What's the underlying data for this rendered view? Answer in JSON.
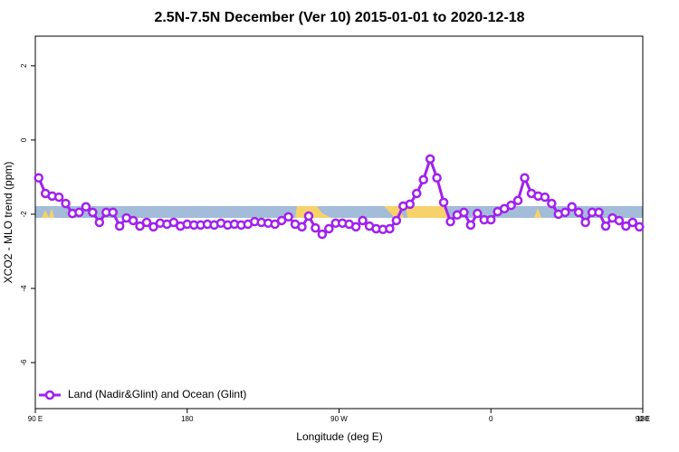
{
  "chart_data": {
    "type": "line",
    "title": "2.5N-7.5N December (Ver 10)   2015-01-01 to 2020-12-18",
    "xlabel": "Longitude (deg E)",
    "ylabel": "XCO2 - MLO trend (ppm)",
    "xlim": [
      90,
      450
    ],
    "ylim": [
      -7.24,
      2.8
    ],
    "xticks": [
      {
        "value": 90,
        "label": "90 E"
      },
      180,
      {
        "value": 270,
        "label": "90 W"
      },
      {
        "value": 360,
        "label": "0"
      },
      {
        "value": 450,
        "label": "90 E"
      },
      {
        "value": 540,
        "label": "180"
      }
    ],
    "yticks": [
      2,
      0,
      -2,
      -4,
      -6
    ],
    "legend": "bottom-left",
    "x": [
      92,
      96,
      100,
      104,
      108,
      112,
      116,
      120,
      124,
      128,
      132,
      136,
      140,
      144,
      148,
      152,
      156,
      160,
      164,
      168,
      172,
      176,
      180,
      184,
      188,
      192,
      196,
      200,
      204,
      208,
      212,
      216,
      220,
      224,
      228,
      232,
      236,
      240,
      244,
      248,
      252,
      256,
      260,
      264,
      268,
      272,
      276,
      280,
      284,
      288,
      292,
      296,
      300,
      304,
      308,
      312,
      316,
      320,
      324,
      328,
      332,
      336,
      340,
      344,
      348,
      352,
      356,
      360,
      364,
      368,
      372,
      376,
      380,
      384,
      388,
      392,
      396,
      400,
      404,
      408,
      412,
      416,
      420,
      424,
      428,
      432,
      436,
      440,
      444,
      448
    ],
    "series": [
      {
        "name": "Land (Nadir&Glint) and Ocean (Glint)",
        "color": "#a020f0",
        "values": [
          -1.02,
          -1.44,
          -1.51,
          -1.54,
          -1.71,
          -1.98,
          -1.95,
          -1.8,
          -1.95,
          -2.22,
          -1.95,
          -1.95,
          -2.32,
          -2.1,
          -2.17,
          -2.32,
          -2.22,
          -2.34,
          -2.24,
          -2.27,
          -2.22,
          -2.32,
          -2.27,
          -2.29,
          -2.29,
          -2.27,
          -2.29,
          -2.24,
          -2.29,
          -2.27,
          -2.29,
          -2.27,
          -2.2,
          -2.22,
          -2.24,
          -2.27,
          -2.17,
          -2.07,
          -2.27,
          -2.34,
          -2.05,
          -2.37,
          -2.54,
          -2.39,
          -2.24,
          -2.24,
          -2.27,
          -2.34,
          -2.17,
          -2.32,
          -2.39,
          -2.41,
          -2.39,
          -2.17,
          -1.78,
          -1.73,
          -1.44,
          -1.07,
          -0.51,
          -1.02,
          -1.68,
          -2.2,
          -2.02,
          -1.95,
          -2.29,
          -1.98,
          -2.15,
          -2.15,
          -1.93,
          -1.85,
          -1.76,
          -1.63,
          -1.02,
          -1.44,
          -1.51,
          -1.54,
          -1.71,
          -2.0,
          -1.95,
          -1.8,
          -1.95,
          -2.22,
          -1.95,
          -1.95,
          -2.32,
          -2.1,
          -2.17,
          -2.32,
          -2.22,
          -2.34
        ]
      }
    ]
  }
}
